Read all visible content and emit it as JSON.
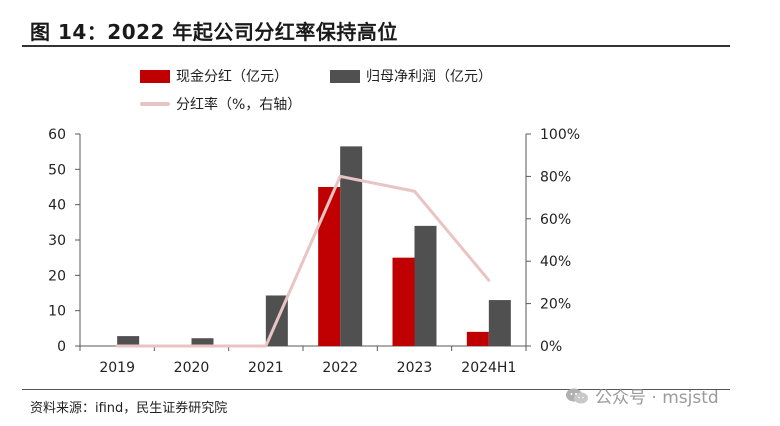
{
  "header": {
    "title": "图 14：2022 年起公司分红率保持高位"
  },
  "legend": {
    "cash_dividend": "现金分红（亿元）",
    "net_profit": "归母净利润（亿元）",
    "payout_ratio": "分红率（%，右轴）"
  },
  "colors": {
    "cash_dividend": "#c00000",
    "net_profit": "#505050",
    "payout_ratio": "#e8c4c4",
    "axis": "#595959"
  },
  "chart_data": {
    "type": "bar",
    "title": "2022 年起公司分红率保持高位",
    "categories": [
      "2019",
      "2020",
      "2021",
      "2022",
      "2023",
      "2024H1"
    ],
    "series": [
      {
        "name": "现金分红（亿元）",
        "type": "bar",
        "axis": "left",
        "values": [
          0,
          0,
          0,
          45,
          25,
          4
        ]
      },
      {
        "name": "归母净利润（亿元）",
        "type": "bar",
        "axis": "left",
        "values": [
          2.8,
          2.2,
          14.3,
          56.5,
          34,
          13
        ]
      },
      {
        "name": "分红率（%，右轴）",
        "type": "line",
        "axis": "right",
        "values": [
          0,
          0,
          0,
          80,
          73,
          31
        ]
      }
    ],
    "y_left": {
      "range": [
        0,
        60
      ],
      "ticks": [
        "0",
        "10",
        "20",
        "30",
        "40",
        "50",
        "60"
      ]
    },
    "y_right": {
      "range": [
        0,
        100
      ],
      "ticks": [
        "0%",
        "20%",
        "40%",
        "60%",
        "80%",
        "100%"
      ]
    },
    "grid": false
  },
  "footer": {
    "source": "资料来源：ifind，民生证券研究院",
    "watermark": "公众号 · msjstd"
  }
}
